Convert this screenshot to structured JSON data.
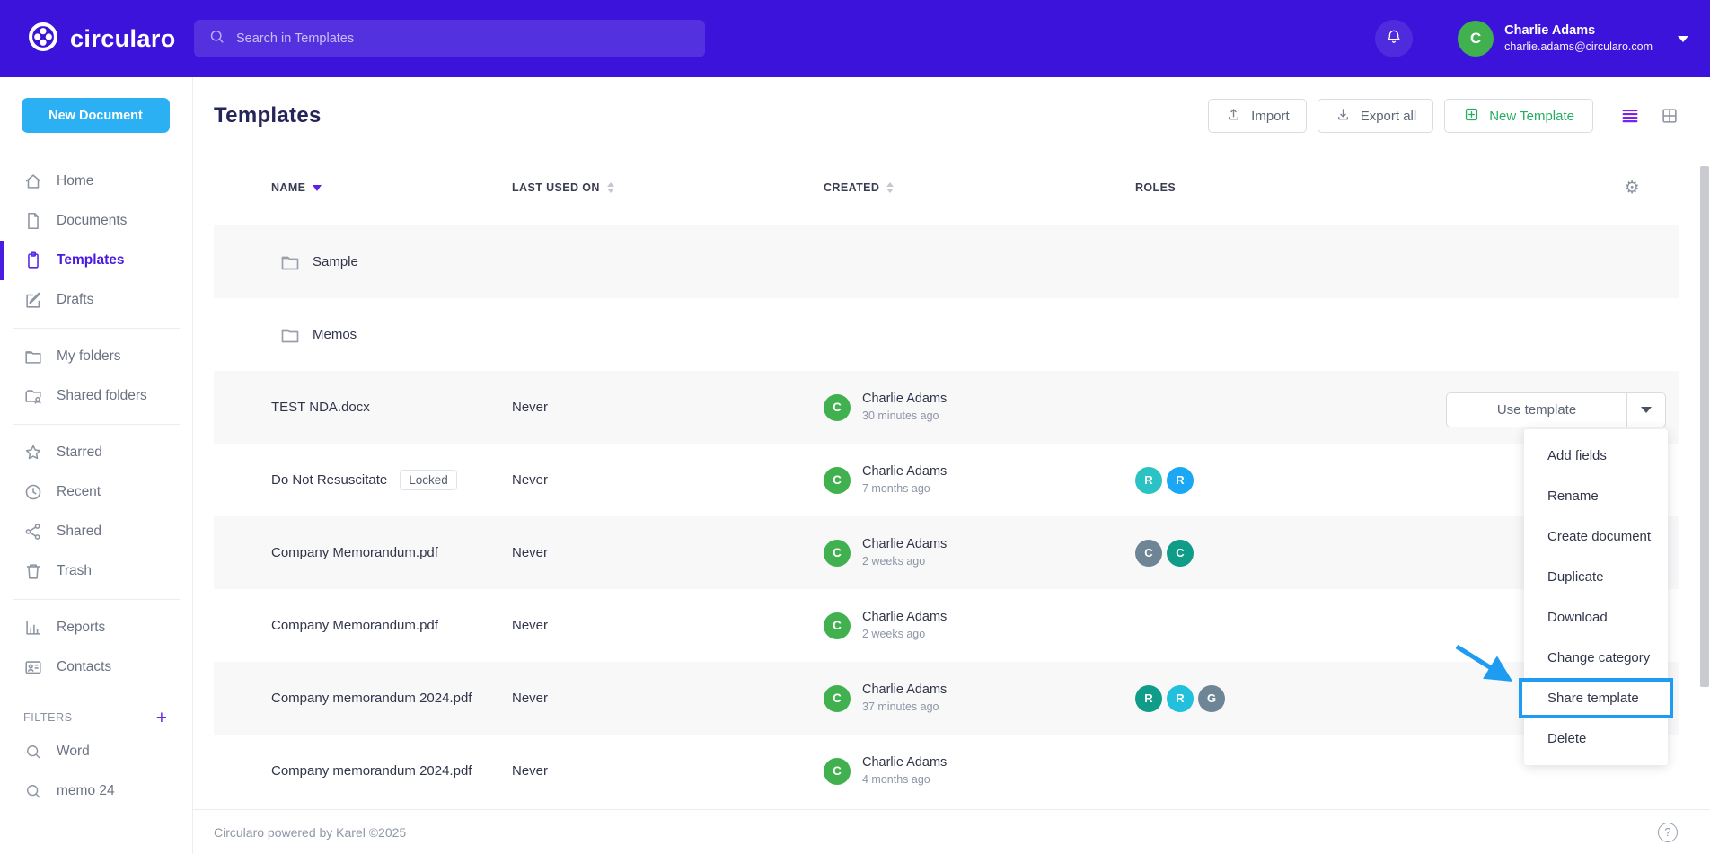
{
  "header": {
    "logo_text": "circularo",
    "search_placeholder": "Search in Templates",
    "user_initial": "C",
    "user_name": "Charlie Adams",
    "user_email": "charlie.adams@circularo.com"
  },
  "sidebar": {
    "new_document_label": "New Document",
    "sections": [
      {
        "items": [
          {
            "icon": "home",
            "label": "Home"
          },
          {
            "icon": "document",
            "label": "Documents"
          },
          {
            "icon": "template",
            "label": "Templates",
            "active": true
          },
          {
            "icon": "edit",
            "label": "Drafts"
          }
        ]
      },
      {
        "items": [
          {
            "icon": "folder",
            "label": "My folders"
          },
          {
            "icon": "folder-shared",
            "label": "Shared folders"
          }
        ]
      },
      {
        "items": [
          {
            "icon": "star",
            "label": "Starred"
          },
          {
            "icon": "clock",
            "label": "Recent"
          },
          {
            "icon": "share",
            "label": "Shared"
          },
          {
            "icon": "trash",
            "label": "Trash"
          }
        ]
      },
      {
        "items": [
          {
            "icon": "reports",
            "label": "Reports"
          },
          {
            "icon": "contacts",
            "label": "Contacts"
          }
        ]
      }
    ],
    "filters_label": "FILTERS",
    "filters_add": "+",
    "filters": [
      {
        "icon": "search",
        "label": "Word"
      },
      {
        "icon": "search",
        "label": "memo 24"
      }
    ]
  },
  "main": {
    "title": "Templates",
    "toolbar": {
      "import_label": "Import",
      "export_all_label": "Export all",
      "new_template_label": "New Template"
    },
    "table": {
      "columns": [
        {
          "label": "NAME",
          "sort": "desc"
        },
        {
          "label": "LAST USED ON",
          "sort": "both"
        },
        {
          "label": "CREATED",
          "sort": "both"
        },
        {
          "label": "ROLES",
          "sort": "none"
        }
      ],
      "rows": [
        {
          "type": "folder",
          "name": "Sample"
        },
        {
          "type": "folder",
          "name": "Memos"
        },
        {
          "type": "file",
          "name": "TEST NDA.docx",
          "last_used": "Never",
          "creator": "Charlie Adams",
          "creator_initial": "C",
          "created": "30 minutes ago",
          "roles": []
        },
        {
          "type": "file",
          "name": "Do Not Resuscitate",
          "badge": "Locked",
          "last_used": "Never",
          "creator": "Charlie Adams",
          "creator_initial": "C",
          "created": "7 months ago",
          "roles": [
            {
              "letter": "R",
              "color": "#2bc2c4"
            },
            {
              "letter": "R",
              "color": "#1aa7f3"
            }
          ]
        },
        {
          "type": "file",
          "name": "Company Memorandum.pdf",
          "last_used": "Never",
          "creator": "Charlie Adams",
          "creator_initial": "C",
          "created": "2 weeks ago",
          "roles": [
            {
              "letter": "C",
              "color": "#6d8594"
            },
            {
              "letter": "C",
              "color": "#0f9d8a"
            }
          ]
        },
        {
          "type": "file",
          "name": "Company Memorandum.pdf",
          "last_used": "Never",
          "creator": "Charlie Adams",
          "creator_initial": "C",
          "created": "2 weeks ago",
          "roles": []
        },
        {
          "type": "file",
          "name": "Company memorandum 2024.pdf",
          "last_used": "Never",
          "creator": "Charlie Adams",
          "creator_initial": "C",
          "created": "37 minutes ago",
          "roles": [
            {
              "letter": "R",
              "color": "#0f9d8a"
            },
            {
              "letter": "R",
              "color": "#21c0dc"
            },
            {
              "letter": "G",
              "color": "#6d8594"
            }
          ]
        },
        {
          "type": "file",
          "name": "Company memorandum 2024.pdf",
          "last_used": "Never",
          "creator": "Charlie Adams",
          "creator_initial": "C",
          "created": "4 months ago",
          "roles": []
        }
      ]
    },
    "use_template_label": "Use template",
    "context_menu": {
      "items": [
        "Add fields",
        "Rename",
        "Create document",
        "Duplicate",
        "Download",
        "Change category",
        "Share template",
        "Delete"
      ],
      "highlighted_item": "Share template"
    },
    "footer_text": "Circularo powered by Karel ©2025",
    "help_label": "?"
  },
  "colors": {
    "brand_purple": "#3b13db",
    "active_purple": "#4a1be0",
    "new_document_blue": "#2bb1f3",
    "new_template_green": "#27ad61",
    "avatar_green": "#41b14f",
    "annotation_blue": "#1e9cf2"
  }
}
